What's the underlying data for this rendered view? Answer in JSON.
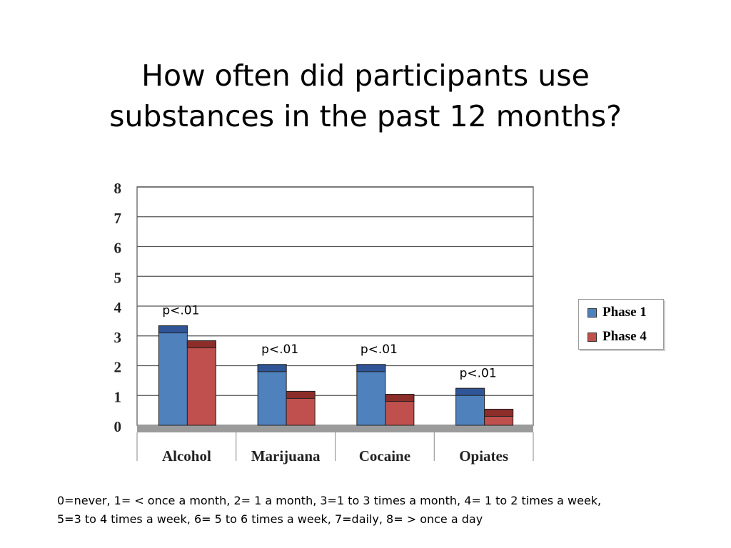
{
  "slide": {
    "title_line1": "How often did participants use",
    "title_line2": "substances in the past 12 months?"
  },
  "chart_data": {
    "type": "bar",
    "categories": [
      "Alcohol",
      "Marijuana",
      "Cocaine",
      "Opiates"
    ],
    "series": [
      {
        "name": "Phase 1",
        "values": [
          3.1,
          1.8,
          1.8,
          1.0
        ],
        "color": "#4f81bd",
        "cap_color": "#2f5597"
      },
      {
        "name": "Phase 4",
        "values": [
          2.6,
          0.9,
          0.8,
          0.3
        ],
        "color": "#c0504d",
        "cap_color": "#8c2d2a"
      }
    ],
    "ylim": [
      0,
      8
    ],
    "yticks": [
      "0",
      "1",
      "2",
      "3",
      "4",
      "5",
      "6",
      "7",
      "8"
    ],
    "grid": true,
    "legend_position": "right",
    "annotations": [
      {
        "category": "Alcohol",
        "text": "p<.01"
      },
      {
        "category": "Marijuana",
        "text": "p<.01"
      },
      {
        "category": "Cocaine",
        "text": "p<.01"
      },
      {
        "category": "Opiates",
        "text": "p<.01"
      }
    ]
  },
  "footnote": {
    "line1": "0=never, 1= < once a month, 2= 1 a month, 3=1 to 3 times a month, 4= 1 to 2 times a week,",
    "line2": "5=3 to 4 times a week, 6= 5 to 6 times a week, 7=daily, 8=  > once a day"
  }
}
